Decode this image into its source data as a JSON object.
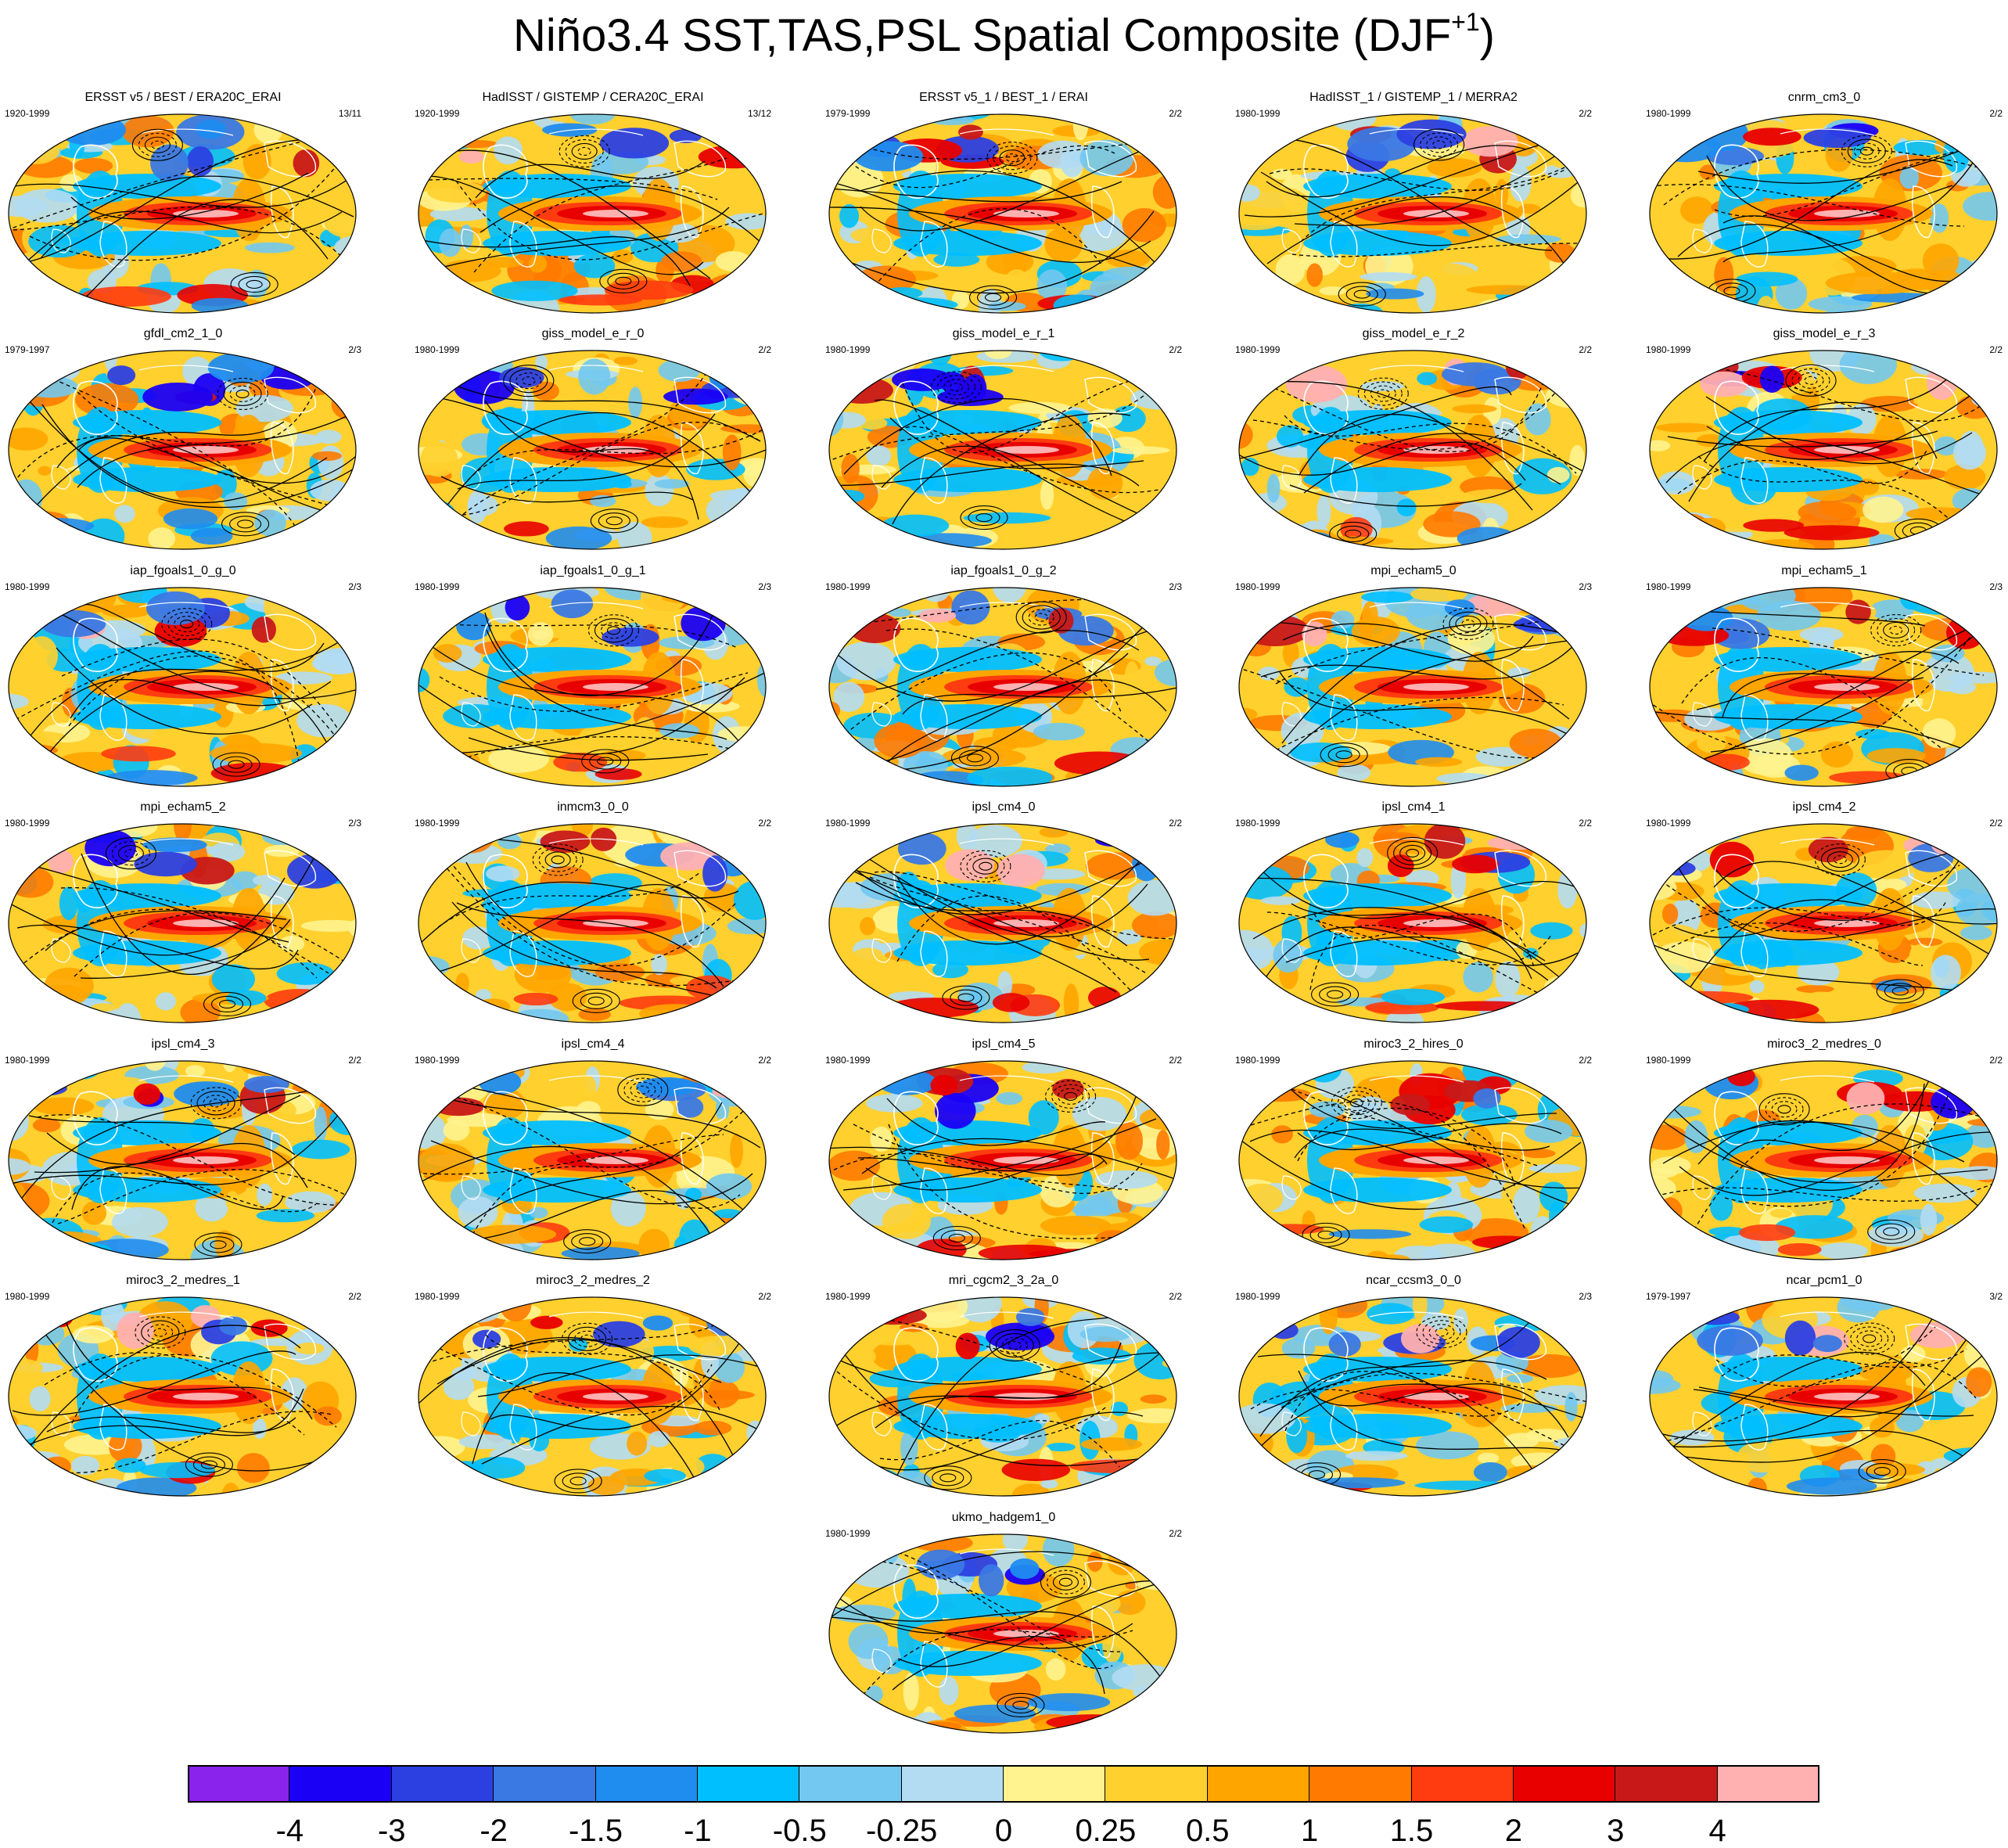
{
  "title": {
    "main": "Niño3.4 SST,TAS,PSL Spatial Composite (DJF",
    "superscript": "+1",
    "close": ")"
  },
  "panels": [
    {
      "name": "ERSST v5 / BEST / ERA20C_ERAI",
      "years": "1920-1999",
      "count": "13/11"
    },
    {
      "name": "HadISST / GISTEMP / CERA20C_ERAI",
      "years": "1920-1999",
      "count": "13/12"
    },
    {
      "name": "ERSST v5_1 / BEST_1 / ERAI",
      "years": "1979-1999",
      "count": "2/2"
    },
    {
      "name": "HadISST_1 / GISTEMP_1 / MERRA2",
      "years": "1980-1999",
      "count": "2/2"
    },
    {
      "name": "cnrm_cm3_0",
      "years": "1980-1999",
      "count": "2/2"
    },
    {
      "name": "gfdl_cm2_1_0",
      "years": "1979-1997",
      "count": "2/3"
    },
    {
      "name": "giss_model_e_r_0",
      "years": "1980-1999",
      "count": "2/2"
    },
    {
      "name": "giss_model_e_r_1",
      "years": "1980-1999",
      "count": "2/2"
    },
    {
      "name": "giss_model_e_r_2",
      "years": "1980-1999",
      "count": "2/2"
    },
    {
      "name": "giss_model_e_r_3",
      "years": "1980-1999",
      "count": "2/2"
    },
    {
      "name": "iap_fgoals1_0_g_0",
      "years": "1980-1999",
      "count": "2/3"
    },
    {
      "name": "iap_fgoals1_0_g_1",
      "years": "1980-1999",
      "count": "2/3"
    },
    {
      "name": "iap_fgoals1_0_g_2",
      "years": "1980-1999",
      "count": "2/3"
    },
    {
      "name": "mpi_echam5_0",
      "years": "1980-1999",
      "count": "2/3"
    },
    {
      "name": "mpi_echam5_1",
      "years": "1980-1999",
      "count": "2/3"
    },
    {
      "name": "mpi_echam5_2",
      "years": "1980-1999",
      "count": "2/3"
    },
    {
      "name": "inmcm3_0_0",
      "years": "1980-1999",
      "count": "2/2"
    },
    {
      "name": "ipsl_cm4_0",
      "years": "1980-1999",
      "count": "2/2"
    },
    {
      "name": "ipsl_cm4_1",
      "years": "1980-1999",
      "count": "2/2"
    },
    {
      "name": "ipsl_cm4_2",
      "years": "1980-1999",
      "count": "2/2"
    },
    {
      "name": "ipsl_cm4_3",
      "years": "1980-1999",
      "count": "2/2"
    },
    {
      "name": "ipsl_cm4_4",
      "years": "1980-1999",
      "count": "2/2"
    },
    {
      "name": "ipsl_cm4_5",
      "years": "1980-1999",
      "count": "2/2"
    },
    {
      "name": "miroc3_2_hires_0",
      "years": "1980-1999",
      "count": "2/2"
    },
    {
      "name": "miroc3_2_medres_0",
      "years": "1980-1999",
      "count": "2/2"
    },
    {
      "name": "miroc3_2_medres_1",
      "years": "1980-1999",
      "count": "2/2"
    },
    {
      "name": "miroc3_2_medres_2",
      "years": "1980-1999",
      "count": "2/2"
    },
    {
      "name": "mri_cgcm2_3_2a_0",
      "years": "1980-1999",
      "count": "2/2"
    },
    {
      "name": "ncar_ccsm3_0_0",
      "years": "1980-1999",
      "count": "2/3"
    },
    {
      "name": "ncar_pcm1_0",
      "years": "1979-1997",
      "count": "3/2"
    },
    {
      "name": "ukmo_hadgem1_0",
      "years": "1980-1999",
      "count": "2/2"
    }
  ],
  "colorbar": {
    "colors": [
      "#8a23ec",
      "#1a00f5",
      "#2c40e2",
      "#3a78e4",
      "#1f8cf0",
      "#00bfff",
      "#72c8f0",
      "#b3dcf3",
      "#fff38f",
      "#ffd02e",
      "#ffa500",
      "#ff7a00",
      "#ff3b10",
      "#e80000",
      "#c81818",
      "#ffb0b0"
    ],
    "labels": [
      "-4",
      "-3",
      "-2",
      "-1.5",
      "-1",
      "-0.5",
      "-0.25",
      "0",
      "0.25",
      "0.5",
      "1",
      "1.5",
      "2",
      "3",
      "4"
    ]
  }
}
